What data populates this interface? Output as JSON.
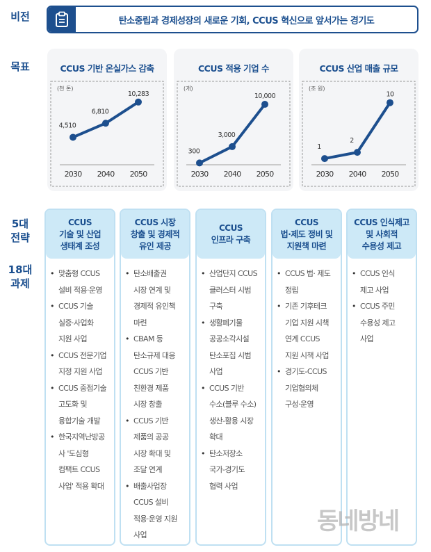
{
  "labels": {
    "vision": "비전",
    "goal": "목표",
    "strategy": "5대\n전략",
    "tasks": "18대\n과제"
  },
  "vision": {
    "icon": "clipboard-icon",
    "text": "탄소중립과 경제성장의 새로운 기회, CCUS 혁신으로 앞서가는 경기도"
  },
  "colors": {
    "primary": "#1d4f8e",
    "header_bg": "#cde9f7",
    "panel_bg": "#f4f5f7"
  },
  "chart_data": [
    {
      "type": "line",
      "title": "CCUS 기반 온실가스 감축",
      "unit": "(천 톤)",
      "categories": [
        "2030",
        "2040",
        "2050"
      ],
      "values": [
        4510,
        6810,
        10283
      ],
      "labels": [
        "4,510",
        "6,810",
        "10,283"
      ],
      "ylim": [
        0,
        11400
      ]
    },
    {
      "type": "line",
      "title": "CCUS 적용 기업 수",
      "unit": "(개)",
      "categories": [
        "2030",
        "2040",
        "2050"
      ],
      "values": [
        300,
        3000,
        10000
      ],
      "labels": [
        "300",
        "3,000",
        "10,000"
      ],
      "ylim": [
        0,
        11500
      ]
    },
    {
      "type": "line",
      "title": "CCUS 산업 매출 규모",
      "unit": "(조 원)",
      "categories": [
        "2030",
        "2040",
        "2050"
      ],
      "values": [
        1,
        2,
        10
      ],
      "labels": [
        "1",
        "2",
        "10"
      ],
      "ylim": [
        0,
        11.2
      ]
    }
  ],
  "strategies": [
    {
      "title": "CCUS\n기술 및 산업\n생태계 조성",
      "items": [
        "맞춤형 CCUS\n설비 적용·운영",
        "CCUS 기술\n실증·사업화\n지원 사업",
        "CCUS 전문기업\n지정 지원 사업",
        "CCUS 중점기술\n고도화 및\n융합기술 개발",
        "한국지역난방공\n사 '도심형\n컴팩트 CCUS\n사업' 적용 확대"
      ]
    },
    {
      "title": "CCUS 시장\n창출 및 경제적\n유인 제공",
      "items": [
        "탄소배출권\n시장 연계 및\n경제적 유인책\n마련",
        "CBAM 등\n탄소규제 대응\nCCUS 기반\n친환경 제품\n시장 창출",
        "CCUS 기반\n제품의 공공\n시장 확대 및\n조달 연계",
        "배출사업장\nCCUS 설비\n적용·운영 지원\n사업"
      ]
    },
    {
      "title": "CCUS\n인프라 구축",
      "items": [
        "산업단지 CCUS\n클러스터 시범\n구축",
        "생활폐기물\n공공소각시설\n탄소포집 시범\n사업",
        "CCUS 기반\n수소(블루 수소)\n생산-활용 시장\n확대",
        "탄소저장소\n국가-경기도\n협력 사업"
      ]
    },
    {
      "title": "CCUS\n법·제도 정비 및\n지원책 마련",
      "items": [
        "CCUS 법· 제도\n정립",
        "기존 기후테크\n기업 지원 시책\n연계 CCUS\n지원 시책 사업",
        "경기도-CCUS\n기업협의체\n구성·운영"
      ]
    },
    {
      "title": "CCUS 인식제고\n및 사회적\n수용성 제고",
      "items": [
        "CCUS 인식\n제고 사업",
        "CCUS 주민\n수용성 제고\n사업"
      ]
    }
  ],
  "watermark": "동네방네"
}
